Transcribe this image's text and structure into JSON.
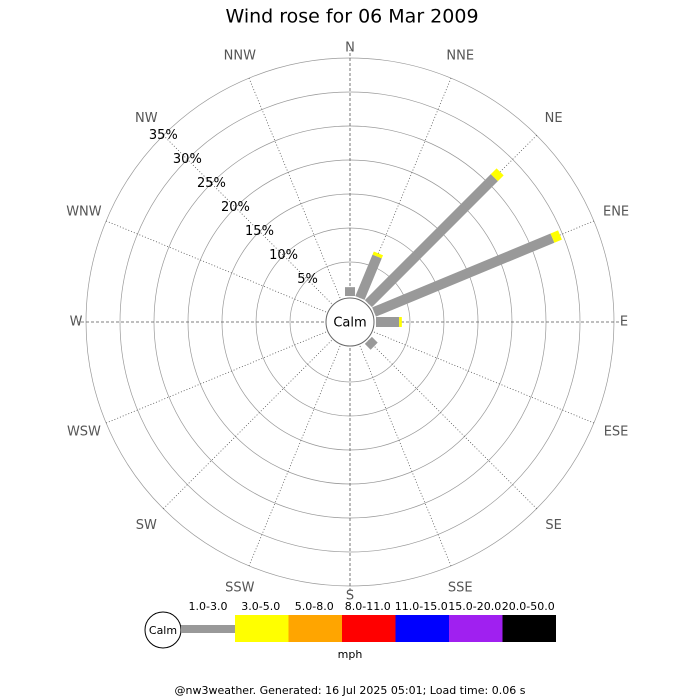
{
  "chart_data": {
    "type": "windrose",
    "title": "Wind rose for 06 Mar 2009",
    "categories": [
      "N",
      "NNE",
      "NE",
      "ENE",
      "E",
      "ESE",
      "SE",
      "SSE",
      "S",
      "SSW",
      "SW",
      "WSW",
      "W",
      "WNW",
      "NW",
      "NNW"
    ],
    "calm_label": "Calm",
    "rlim": [
      0,
      35
    ],
    "rticks": [
      {
        "value": 5,
        "label": "5%"
      },
      {
        "value": 10,
        "label": "10%"
      },
      {
        "value": 15,
        "label": "15%"
      },
      {
        "value": 20,
        "label": "20%"
      },
      {
        "value": 25,
        "label": "25%"
      },
      {
        "value": 30,
        "label": "30%"
      },
      {
        "value": 35,
        "label": "35%"
      }
    ],
    "series": [
      {
        "name": "1.0-3.0",
        "color": "#999999",
        "values": [
          1.3,
          6.6,
          26.2,
          28.4,
          3.4,
          0,
          1.2,
          0,
          0,
          0,
          0,
          0,
          0,
          0,
          0,
          0
        ]
      },
      {
        "name": "3.0-5.0",
        "color": "#ffff00",
        "values": [
          0,
          0.5,
          1.2,
          1.2,
          0.4,
          0,
          0,
          0,
          0,
          0,
          0,
          0,
          0,
          0,
          0,
          0
        ]
      },
      {
        "name": "5.0-8.0",
        "color": "#ffa500",
        "values": [
          0,
          0,
          0,
          0,
          0,
          0,
          0,
          0,
          0,
          0,
          0,
          0,
          0,
          0,
          0,
          0
        ]
      },
      {
        "name": "8.0-11.0",
        "color": "#ff0000",
        "values": [
          0,
          0,
          0,
          0,
          0,
          0,
          0,
          0,
          0,
          0,
          0,
          0,
          0,
          0,
          0,
          0
        ]
      },
      {
        "name": "11.0-15.0",
        "color": "#0000ff",
        "values": [
          0,
          0,
          0,
          0,
          0,
          0,
          0,
          0,
          0,
          0,
          0,
          0,
          0,
          0,
          0,
          0
        ]
      },
      {
        "name": "15.0-20.0",
        "color": "#a020f0",
        "values": [
          0,
          0,
          0,
          0,
          0,
          0,
          0,
          0,
          0,
          0,
          0,
          0,
          0,
          0,
          0,
          0
        ]
      },
      {
        "name": "20.0-50.0",
        "color": "#000000",
        "values": [
          0,
          0,
          0,
          0,
          0,
          0,
          0,
          0,
          0,
          0,
          0,
          0,
          0,
          0,
          0,
          0
        ]
      }
    ],
    "legend_unit": "mph",
    "footer": "@nw3weather. Generated: 16 Jul 2025 05:01; Load time: 0.06 s"
  }
}
